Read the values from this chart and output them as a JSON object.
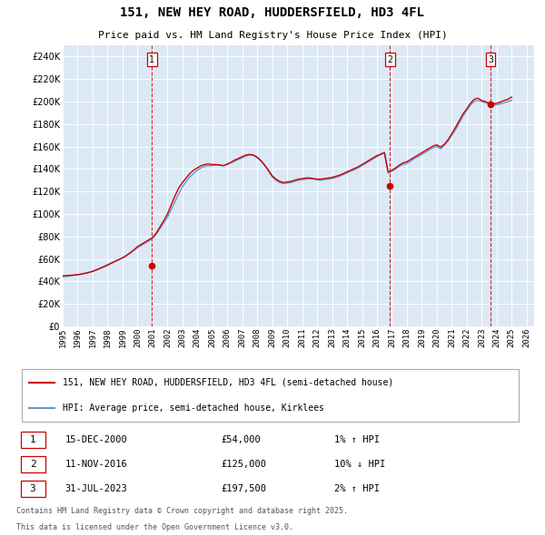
{
  "title": "151, NEW HEY ROAD, HUDDERSFIELD, HD3 4FL",
  "subtitle": "Price paid vs. HM Land Registry's House Price Index (HPI)",
  "ylim": [
    0,
    250000
  ],
  "yticks": [
    0,
    20000,
    40000,
    60000,
    80000,
    100000,
    120000,
    140000,
    160000,
    180000,
    200000,
    220000,
    240000
  ],
  "xlim_start": 1995.0,
  "xlim_end": 2026.5,
  "bg_color": "#dce9f5",
  "grid_color": "#ffffff",
  "hpi_line_color": "#6699cc",
  "price_line_color": "#cc0000",
  "sale_marker_color": "#cc0000",
  "legend_label_price": "151, NEW HEY ROAD, HUDDERSFIELD, HD3 4FL (semi-detached house)",
  "legend_label_hpi": "HPI: Average price, semi-detached house, Kirklees",
  "transactions": [
    {
      "num": 1,
      "date_str": "15-DEC-2000",
      "year": 2000.96,
      "price": 54000,
      "hpi_pct": "1%",
      "hpi_dir": "↑"
    },
    {
      "num": 2,
      "date_str": "11-NOV-2016",
      "year": 2016.87,
      "price": 125000,
      "hpi_pct": "10%",
      "hpi_dir": "↓"
    },
    {
      "num": 3,
      "date_str": "31-JUL-2023",
      "year": 2023.58,
      "price": 197500,
      "hpi_pct": "2%",
      "hpi_dir": "↑"
    }
  ],
  "footer_line1": "Contains HM Land Registry data © Crown copyright and database right 2025.",
  "footer_line2": "This data is licensed under the Open Government Licence v3.0.",
  "hpi_data_years": [
    1995.0,
    1995.25,
    1995.5,
    1995.75,
    1996.0,
    1996.25,
    1996.5,
    1996.75,
    1997.0,
    1997.25,
    1997.5,
    1997.75,
    1998.0,
    1998.25,
    1998.5,
    1998.75,
    1999.0,
    1999.25,
    1999.5,
    1999.75,
    2000.0,
    2000.25,
    2000.5,
    2000.75,
    2001.0,
    2001.25,
    2001.5,
    2001.75,
    2002.0,
    2002.25,
    2002.5,
    2002.75,
    2003.0,
    2003.25,
    2003.5,
    2003.75,
    2004.0,
    2004.25,
    2004.5,
    2004.75,
    2005.0,
    2005.25,
    2005.5,
    2005.75,
    2006.0,
    2006.25,
    2006.5,
    2006.75,
    2007.0,
    2007.25,
    2007.5,
    2007.75,
    2008.0,
    2008.25,
    2008.5,
    2008.75,
    2009.0,
    2009.25,
    2009.5,
    2009.75,
    2010.0,
    2010.25,
    2010.5,
    2010.75,
    2011.0,
    2011.25,
    2011.5,
    2011.75,
    2012.0,
    2012.25,
    2012.5,
    2012.75,
    2013.0,
    2013.25,
    2013.5,
    2013.75,
    2014.0,
    2014.25,
    2014.5,
    2014.75,
    2015.0,
    2015.25,
    2015.5,
    2015.75,
    2016.0,
    2016.25,
    2016.5,
    2016.75,
    2017.0,
    2017.25,
    2017.5,
    2017.75,
    2018.0,
    2018.25,
    2018.5,
    2018.75,
    2019.0,
    2019.25,
    2019.5,
    2019.75,
    2020.0,
    2020.25,
    2020.5,
    2020.75,
    2021.0,
    2021.25,
    2021.5,
    2021.75,
    2022.0,
    2022.25,
    2022.5,
    2022.75,
    2023.0,
    2023.25,
    2023.5,
    2023.75,
    2024.0,
    2024.25,
    2024.5,
    2024.75,
    2025.0
  ],
  "hpi_data_values": [
    44000,
    44500,
    45000,
    45500,
    46000,
    46800,
    47500,
    48200,
    49000,
    50500,
    52000,
    53500,
    55000,
    56500,
    58000,
    59500,
    61000,
    63000,
    65000,
    67500,
    70000,
    72000,
    74000,
    76000,
    78000,
    82000,
    87000,
    92000,
    97000,
    104000,
    111000,
    118000,
    124000,
    129000,
    133000,
    136000,
    139000,
    141000,
    142500,
    143000,
    143000,
    143500,
    143500,
    143000,
    144000,
    145500,
    147000,
    148500,
    150000,
    151500,
    152500,
    152000,
    150000,
    147000,
    143000,
    138000,
    133000,
    130000,
    128000,
    127000,
    127500,
    128000,
    129000,
    130000,
    130500,
    131000,
    131500,
    131000,
    130500,
    130000,
    130500,
    131000,
    131500,
    132500,
    133500,
    135000,
    136500,
    138000,
    139500,
    141000,
    143000,
    145000,
    147000,
    149000,
    151000,
    153500,
    155000,
    136500,
    138000,
    140000,
    142500,
    144000,
    145000,
    147000,
    149500,
    151000,
    153000,
    155000,
    157000,
    159000,
    160000,
    158000,
    161000,
    165000,
    170000,
    175000,
    181000,
    187000,
    192000,
    197000,
    200000,
    201000,
    200000,
    199000,
    197500,
    197000,
    197000,
    198000,
    199000,
    200000,
    201000
  ],
  "price_data_years": [
    1995.0,
    1995.25,
    1995.5,
    1995.75,
    1996.0,
    1996.25,
    1996.5,
    1996.75,
    1997.0,
    1997.25,
    1997.5,
    1997.75,
    1998.0,
    1998.25,
    1998.5,
    1998.75,
    1999.0,
    1999.25,
    1999.5,
    1999.75,
    2000.0,
    2000.25,
    2000.5,
    2000.75,
    2001.0,
    2001.25,
    2001.5,
    2001.75,
    2002.0,
    2002.25,
    2002.5,
    2002.75,
    2003.0,
    2003.25,
    2003.5,
    2003.75,
    2004.0,
    2004.25,
    2004.5,
    2004.75,
    2005.0,
    2005.25,
    2005.5,
    2005.75,
    2006.0,
    2006.25,
    2006.5,
    2006.75,
    2007.0,
    2007.25,
    2007.5,
    2007.75,
    2008.0,
    2008.25,
    2008.5,
    2008.75,
    2009.0,
    2009.25,
    2009.5,
    2009.75,
    2010.0,
    2010.25,
    2010.5,
    2010.75,
    2011.0,
    2011.25,
    2011.5,
    2011.75,
    2012.0,
    2012.25,
    2012.5,
    2012.75,
    2013.0,
    2013.25,
    2013.5,
    2013.75,
    2014.0,
    2014.25,
    2014.5,
    2014.75,
    2015.0,
    2015.25,
    2015.5,
    2015.75,
    2016.0,
    2016.25,
    2016.5,
    2016.75,
    2017.0,
    2017.25,
    2017.5,
    2017.75,
    2018.0,
    2018.25,
    2018.5,
    2018.75,
    2019.0,
    2019.25,
    2019.5,
    2019.75,
    2020.0,
    2020.25,
    2020.5,
    2020.75,
    2021.0,
    2021.25,
    2021.5,
    2021.75,
    2022.0,
    2022.25,
    2022.5,
    2022.75,
    2023.0,
    2023.25,
    2023.5,
    2023.75,
    2024.0,
    2024.25,
    2024.5,
    2024.75,
    2025.0
  ],
  "price_data_values": [
    45000,
    45200,
    45500,
    45700,
    46000,
    46500,
    47200,
    48000,
    49000,
    50200,
    51500,
    53000,
    54500,
    56200,
    57800,
    59400,
    61000,
    63000,
    65500,
    68000,
    71000,
    73000,
    75000,
    77000,
    79000,
    83000,
    88500,
    94000,
    100000,
    108000,
    116000,
    123000,
    128000,
    132000,
    136000,
    139000,
    141000,
    143000,
    144000,
    144500,
    144000,
    144000,
    143500,
    143000,
    144500,
    146000,
    148000,
    149500,
    151000,
    152500,
    153000,
    152500,
    150500,
    147500,
    143500,
    139000,
    134000,
    131000,
    129000,
    128000,
    128500,
    129000,
    130000,
    131000,
    131500,
    132000,
    132000,
    131500,
    131000,
    131000,
    131500,
    132000,
    132500,
    133500,
    134500,
    136000,
    137500,
    139000,
    140500,
    142000,
    144000,
    146000,
    148000,
    150000,
    152000,
    153000,
    154500,
    137000,
    139000,
    141000,
    143500,
    145500,
    146500,
    148500,
    150500,
    152500,
    154500,
    156500,
    158500,
    160500,
    161500,
    159500,
    162000,
    166000,
    171500,
    177000,
    183000,
    189000,
    193500,
    198500,
    202000,
    203000,
    201000,
    200000,
    198500,
    198000,
    198500,
    199500,
    201000,
    202000,
    204000
  ]
}
